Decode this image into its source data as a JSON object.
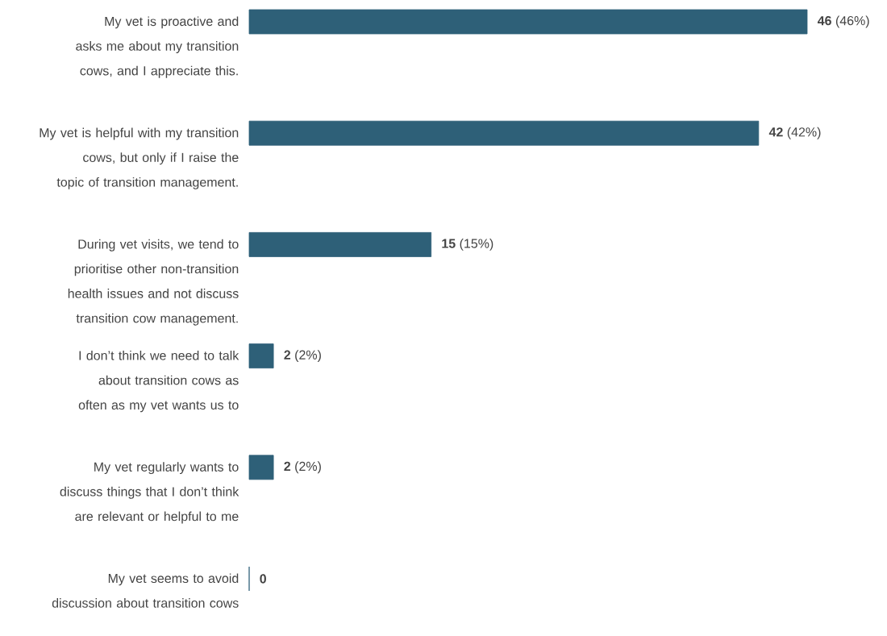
{
  "chart_data": {
    "type": "bar",
    "orientation": "horizontal",
    "categories": [
      "My vet is proactive and asks me about my transition cows, and I appreciate this.",
      "My vet is helpful with my transition cows, but only if I raise the topic of transition management.",
      "During vet visits, we tend to prioritise other non-transition health issues and not discuss transition cow management.",
      "I don’t think we need to talk about transition cows as often as my vet wants us to",
      "My vet regularly wants to discuss things that I don’t think are relevant or helpful to me",
      "My vet seems to avoid discussion about transition cows"
    ],
    "values": [
      46,
      42,
      15,
      2,
      2,
      0
    ],
    "value_labels": [
      "**46** (46%)",
      "**42** (42%)",
      "**15** (15%)",
      "**2** (2%)",
      "**2** (2%)",
      "**0**"
    ],
    "color": "#2e6078"
  }
}
